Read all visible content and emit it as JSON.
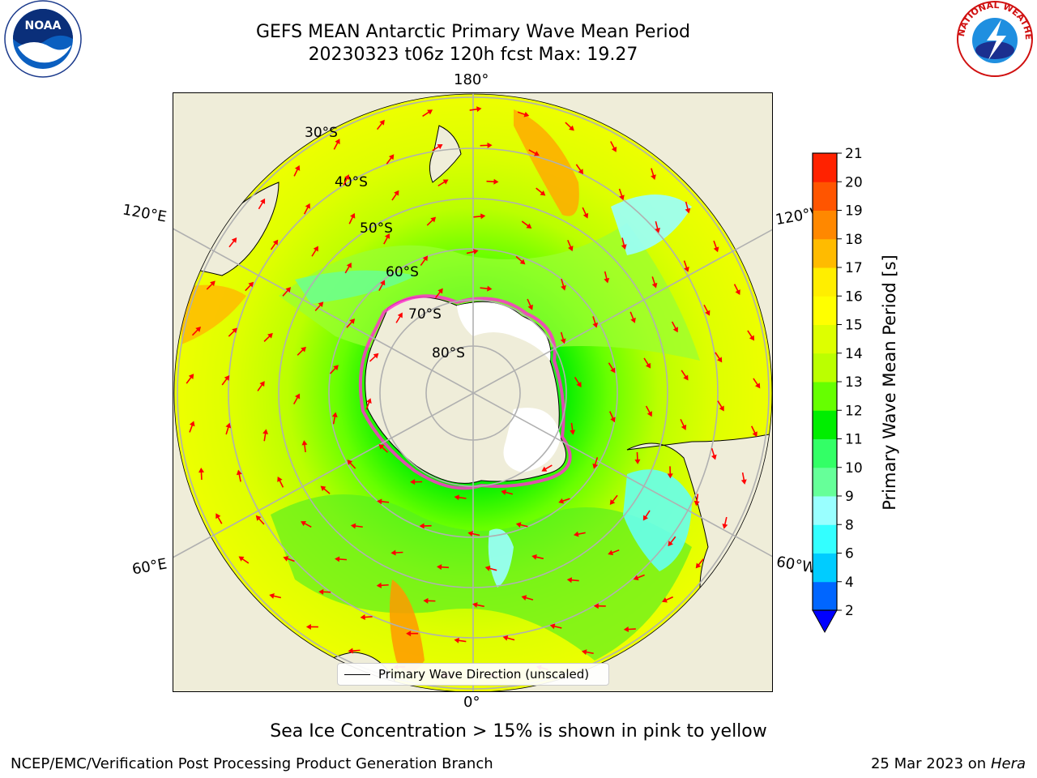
{
  "header": {
    "title_line1": "GEFS MEAN Antarctic Primary Wave Mean Period",
    "title_line2": "20230323 t06z 120h fcst   Max: 19.27"
  },
  "map": {
    "longitude_labels": {
      "top": "180°",
      "bottom": "0°",
      "left_upper": "120°E",
      "right_upper": "120°W",
      "left_lower": "60°E",
      "right_lower": "60°W"
    },
    "latitude_labels": [
      "30°S",
      "40°S",
      "50°S",
      "60°S",
      "70°S",
      "80°S"
    ],
    "legend_label": "Primary Wave Direction (unscaled)",
    "land_color": "#efedd9",
    "arrow_color": "#ff0000"
  },
  "colorbar": {
    "label": "Primary Wave Mean Period [s]",
    "ticks": [
      "2",
      "4",
      "6",
      "8",
      "9",
      "10",
      "11",
      "12",
      "13",
      "14",
      "15",
      "16",
      "17",
      "18",
      "19",
      "20",
      "21"
    ],
    "colors": [
      "#0066ff",
      "#00ccff",
      "#33ffff",
      "#99ffff",
      "#66ff99",
      "#33ff66",
      "#00ee00",
      "#66ff00",
      "#bbff00",
      "#ddff00",
      "#ffff00",
      "#ffee00",
      "#ffbb00",
      "#ff8800",
      "#ff5500",
      "#ff2200"
    ],
    "under_color": "#0000ff"
  },
  "footer": {
    "note": "Sea Ice Concentration > 15% is shown in pink to yellow",
    "credit": "NCEP/EMC/Verification Post Processing Product Generation Branch",
    "date": "25 Mar 2023 on",
    "host": "Hera"
  },
  "logos": {
    "noaa": "NOAA",
    "nws": "NATIONAL WEATHER SERVICE"
  }
}
